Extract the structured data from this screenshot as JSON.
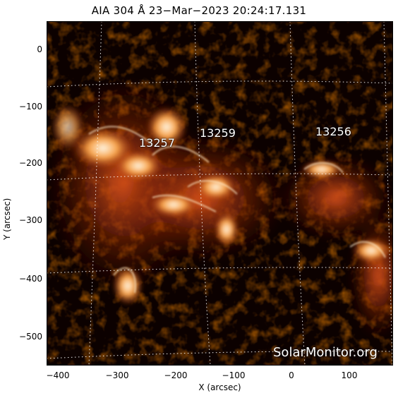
{
  "title": "AIA 304 Å 23−Mar−2023 20:24:17.131",
  "axes": {
    "xlabel": "X (arcsec)",
    "ylabel": "Y (arcsec)",
    "x_ticks": [
      "−400",
      "−300",
      "−200",
      "−100",
      "0",
      "100"
    ],
    "y_ticks": [
      "0",
      "−100",
      "−200",
      "−300",
      "−400",
      "−500"
    ]
  },
  "active_regions": [
    "13257",
    "13259",
    "13256"
  ],
  "watermark": "SolarMonitor.org",
  "colors": {
    "background": "#0c0100",
    "bright": "#fff2d8",
    "mid": "#c83c00",
    "dim": "#5a0e00"
  }
}
